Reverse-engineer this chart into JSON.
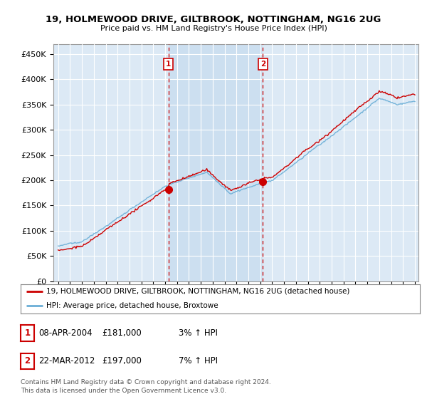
{
  "title": "19, HOLMEWOOD DRIVE, GILTBROOK, NOTTINGHAM, NG16 2UG",
  "subtitle": "Price paid vs. HM Land Registry's House Price Index (HPI)",
  "ylabel_ticks": [
    "£0",
    "£50K",
    "£100K",
    "£150K",
    "£200K",
    "£250K",
    "£300K",
    "£350K",
    "£400K",
    "£450K"
  ],
  "ytick_values": [
    0,
    50000,
    100000,
    150000,
    200000,
    250000,
    300000,
    350000,
    400000,
    450000
  ],
  "ylim": [
    0,
    470000
  ],
  "xlim_start": 1994.6,
  "xlim_end": 2025.3,
  "background_color": "#ffffff",
  "plot_bg_color": "#dce9f5",
  "shaded_bg_color": "#ccdff0",
  "grid_color": "#ffffff",
  "hpi_line_color": "#6aaed6",
  "price_line_color": "#cc0000",
  "sale1_x": 2004.27,
  "sale1_y": 181000,
  "sale2_x": 2012.22,
  "sale2_y": 197000,
  "sale1_label": "1",
  "sale2_label": "2",
  "legend_address": "19, HOLMEWOOD DRIVE, GILTBROOK, NOTTINGHAM, NG16 2UG (detached house)",
  "legend_hpi": "HPI: Average price, detached house, Broxtowe",
  "table_row1": [
    "1",
    "08-APR-2004",
    "£181,000",
    "3% ↑ HPI"
  ],
  "table_row2": [
    "2",
    "22-MAR-2012",
    "£197,000",
    "7% ↑ HPI"
  ],
  "footer": "Contains HM Land Registry data © Crown copyright and database right 2024.\nThis data is licensed under the Open Government Licence v3.0.",
  "xtick_years": [
    1995,
    1996,
    1997,
    1998,
    1999,
    2000,
    2001,
    2002,
    2003,
    2004,
    2005,
    2006,
    2007,
    2008,
    2009,
    2010,
    2011,
    2012,
    2013,
    2014,
    2015,
    2016,
    2017,
    2018,
    2019,
    2020,
    2021,
    2022,
    2023,
    2024,
    2025
  ]
}
